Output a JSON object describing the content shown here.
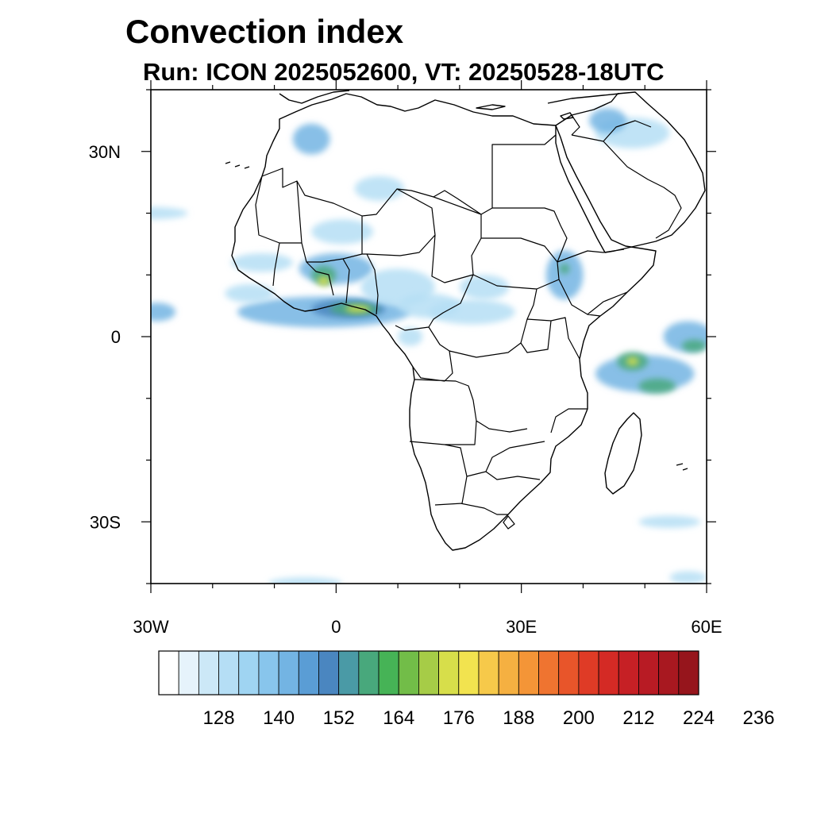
{
  "title": "Convection index",
  "subtitle": "Run: ICON 2025052600,  VT: 20250528-18UTC",
  "map": {
    "lon_range": [
      -30,
      60
    ],
    "lat_range": [
      -40,
      40
    ],
    "x_ticks": [
      {
        "lon": -30,
        "label": "30W"
      },
      {
        "lon": 0,
        "label": "0"
      },
      {
        "lon": 30,
        "label": "30E"
      },
      {
        "lon": 60,
        "label": "60E"
      }
    ],
    "y_ticks": [
      {
        "lat": 30,
        "label": "30N"
      },
      {
        "lat": 0,
        "label": "0"
      },
      {
        "lat": -30,
        "label": "30S"
      }
    ],
    "minor_lon_step": 10,
    "minor_lat_step": 10
  },
  "colorbar": {
    "colors": [
      "#ffffff",
      "#e6f3fb",
      "#cce8f7",
      "#b5def5",
      "#9fd4f2",
      "#88c5ec",
      "#73b4e3",
      "#5a9dd5",
      "#4a86c0",
      "#4a9aa6",
      "#48a87c",
      "#46b356",
      "#72bd48",
      "#a6cc47",
      "#d7de4a",
      "#f2e34f",
      "#f6c94a",
      "#f5b041",
      "#f49537",
      "#ef7430",
      "#e8552a",
      "#df3b26",
      "#d42a25",
      "#c62025",
      "#b81b24",
      "#a81820",
      "#96151c"
    ],
    "labels": [
      "128",
      "140",
      "152",
      "164",
      "176",
      "188",
      "200",
      "212",
      "224",
      "236"
    ]
  },
  "features": {
    "colors": {
      "light": "#b5def5",
      "mid": "#73b4e3",
      "deep": "#4a86c0",
      "green": "#48a87c",
      "yellow": "#d7de4a"
    },
    "blobs": [
      {
        "name": "sahara-cell-1",
        "lon": -4,
        "lat": 32,
        "rx": 3,
        "ry": 2.5,
        "color": "mid"
      },
      {
        "name": "sahara-cell-2",
        "lon": 7,
        "lat": 24,
        "rx": 4,
        "ry": 2,
        "color": "light"
      },
      {
        "name": "sahara-cell-3",
        "lon": 1,
        "lat": 17,
        "rx": 5,
        "ry": 2,
        "color": "light"
      },
      {
        "name": "mauritania-band",
        "lon": -30,
        "lat": 20,
        "rx": 6,
        "ry": 1,
        "color": "light"
      },
      {
        "name": "sahel-west",
        "lon": -12,
        "lat": 12,
        "rx": 5,
        "ry": 1.5,
        "color": "light"
      },
      {
        "name": "nigeria-cell",
        "lon": 0,
        "lat": 11,
        "rx": 6,
        "ry": 2.5,
        "color": "mid"
      },
      {
        "name": "nigeria-core",
        "lon": -2,
        "lat": 10,
        "rx": 2,
        "ry": 1.5,
        "color": "green"
      },
      {
        "name": "nigeria-hot",
        "lon": -2,
        "lat": 9,
        "rx": 1,
        "ry": 0.8,
        "color": "yellow"
      },
      {
        "name": "guinea-coast-belt",
        "lon": -2,
        "lat": 4,
        "rx": 14,
        "ry": 2.5,
        "color": "mid"
      },
      {
        "name": "guinea-coast-deep",
        "lon": 2,
        "lat": 4.5,
        "rx": 6,
        "ry": 1.5,
        "color": "deep"
      },
      {
        "name": "guinea-coast-green",
        "lon": 3,
        "lat": 4.5,
        "rx": 4,
        "ry": 1,
        "color": "green"
      },
      {
        "name": "guinea-coast-hot",
        "lon": 3.5,
        "lat": 4.5,
        "rx": 2,
        "ry": 0.6,
        "color": "yellow"
      },
      {
        "name": "atlantic-west",
        "lon": -29,
        "lat": 4,
        "rx": 3,
        "ry": 1.5,
        "color": "mid"
      },
      {
        "name": "central-africa-1",
        "lon": 10,
        "lat": 8,
        "rx": 6,
        "ry": 3,
        "color": "light"
      },
      {
        "name": "central-africa-2",
        "lon": 15,
        "lat": 5,
        "rx": 5,
        "ry": 2,
        "color": "light"
      },
      {
        "name": "congo-west",
        "lon": 12,
        "lat": 0,
        "rx": 2,
        "ry": 1.5,
        "color": "light"
      },
      {
        "name": "drc-north",
        "lon": 22,
        "lat": 4,
        "rx": 7,
        "ry": 2,
        "color": "light"
      },
      {
        "name": "sudan-cell",
        "lon": 24,
        "lat": 8,
        "rx": 4,
        "ry": 2,
        "color": "light"
      },
      {
        "name": "ethiopia-cell",
        "lon": 37,
        "lat": 10,
        "rx": 3,
        "ry": 4,
        "color": "mid"
      },
      {
        "name": "ethiopia-core",
        "lon": 37,
        "lat": 11,
        "rx": 0.8,
        "ry": 0.8,
        "color": "green"
      },
      {
        "name": "arabia-cell",
        "lon": 48,
        "lat": 33,
        "rx": 6,
        "ry": 2.5,
        "color": "light"
      },
      {
        "name": "iraq-cell",
        "lon": 44,
        "lat": 35,
        "rx": 3,
        "ry": 2,
        "color": "mid"
      },
      {
        "name": "indian-ocean-1",
        "lon": 50,
        "lat": -6,
        "rx": 8,
        "ry": 3,
        "color": "mid"
      },
      {
        "name": "indian-ocean-2",
        "lon": 48,
        "lat": -4,
        "rx": 2.5,
        "ry": 1.5,
        "color": "green"
      },
      {
        "name": "indian-ocean-3",
        "lon": 52,
        "lat": -8,
        "rx": 3,
        "ry": 1.2,
        "color": "green"
      },
      {
        "name": "indian-ocean-hot",
        "lon": 48,
        "lat": -4,
        "rx": 1,
        "ry": 0.7,
        "color": "yellow"
      },
      {
        "name": "indian-ocean-east",
        "lon": 57,
        "lat": 0,
        "rx": 4,
        "ry": 2.5,
        "color": "mid"
      },
      {
        "name": "indian-ocean-east-core",
        "lon": 58,
        "lat": -1.5,
        "rx": 2,
        "ry": 1,
        "color": "green"
      },
      {
        "name": "south-indian",
        "lon": 54,
        "lat": -30,
        "rx": 5,
        "ry": 1,
        "color": "light"
      },
      {
        "name": "south-atlantic",
        "lon": -5,
        "lat": -40,
        "rx": 6,
        "ry": 1,
        "color": "light"
      },
      {
        "name": "south-indian-2",
        "lon": 57,
        "lat": -39,
        "rx": 3,
        "ry": 1,
        "color": "light"
      },
      {
        "name": "tropical-atlantic",
        "lon": -14,
        "lat": 7,
        "rx": 4,
        "ry": 1.5,
        "color": "light"
      }
    ]
  }
}
